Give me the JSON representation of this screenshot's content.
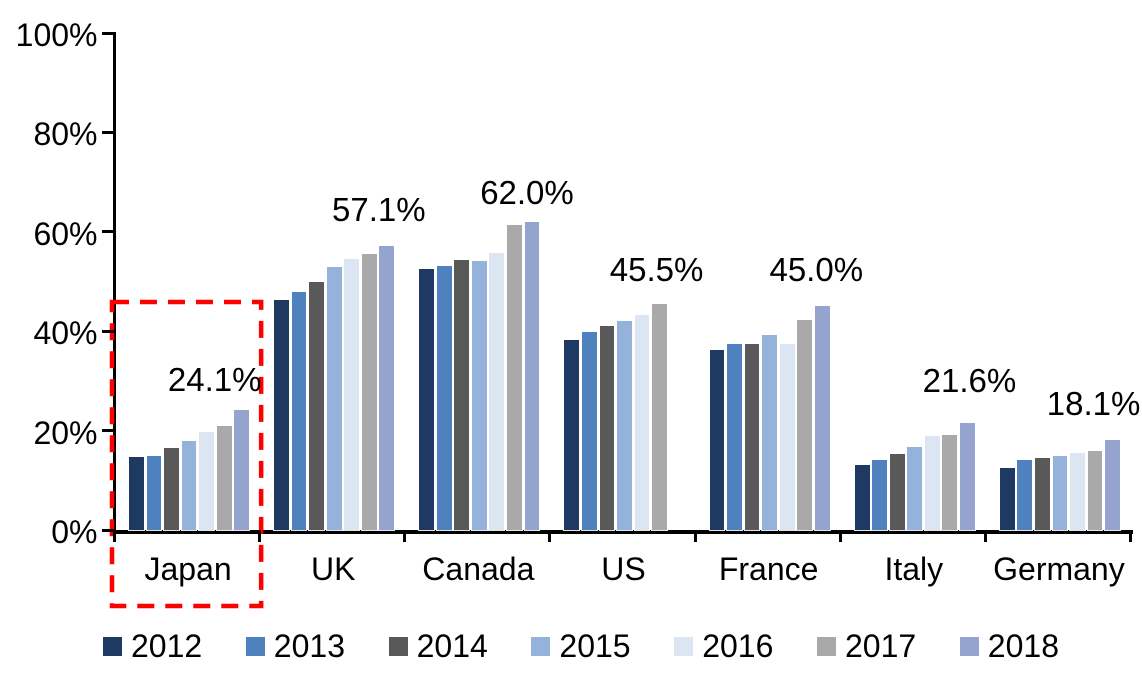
{
  "chart_data": {
    "type": "bar",
    "title": "",
    "xlabel": "",
    "ylabel": "",
    "categories": [
      "Japan",
      "UK",
      "Canada",
      "US",
      "France",
      "Italy",
      "Germany"
    ],
    "series": [
      {
        "name": "2012",
        "color": "#1F3A62",
        "values": [
          14.7,
          46.3,
          52.6,
          38.2,
          36.3,
          13.1,
          12.5
        ]
      },
      {
        "name": "2013",
        "color": "#4E81BD",
        "values": [
          14.9,
          47.8,
          53.2,
          39.8,
          37.5,
          14.0,
          14.0
        ]
      },
      {
        "name": "2014",
        "color": "#595959",
        "values": [
          16.5,
          49.8,
          54.4,
          41.0,
          37.5,
          15.2,
          14.5
        ]
      },
      {
        "name": "2015",
        "color": "#94B2DA",
        "values": [
          18.0,
          53.0,
          54.2,
          42.0,
          39.2,
          16.8,
          14.8
        ]
      },
      {
        "name": "2016",
        "color": "#DCE6F2",
        "values": [
          19.8,
          54.5,
          55.8,
          43.3,
          37.4,
          19.0,
          15.5
        ]
      },
      {
        "name": "2017",
        "color": "#A9A9A9",
        "values": [
          21.0,
          55.6,
          61.3,
          45.5,
          42.2,
          19.2,
          15.8
        ]
      },
      {
        "name": "2018",
        "color": "#95A4CE",
        "values": [
          24.1,
          57.1,
          62.0,
          null,
          45.0,
          21.6,
          18.1
        ]
      }
    ],
    "group_value_labels": [
      "24.1%",
      "57.1%",
      "62.0%",
      "45.5%",
      "45.0%",
      "21.6%",
      "18.1%"
    ],
    "y_tick_labels": [
      "0%",
      "20%",
      "40%",
      "60%",
      "80%",
      "100%"
    ],
    "ylim": [
      0,
      100
    ],
    "grid": "off",
    "legend_position": "bottom",
    "annotations": [
      {
        "type": "dashed-box",
        "target_category": "Japan",
        "color": "#FF0000"
      }
    ]
  }
}
